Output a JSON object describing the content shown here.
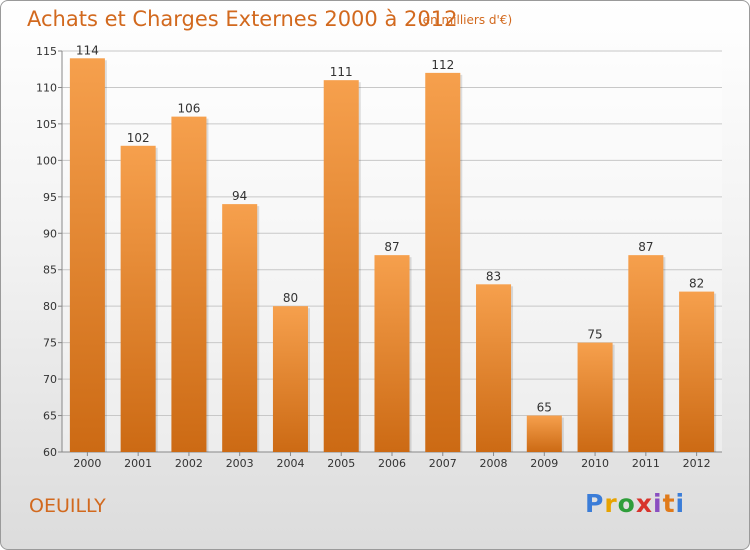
{
  "title": "Achats et Charges Externes 2000 à 2012",
  "subtitle": "(en milliers d'€)",
  "town": "OEUILLY",
  "logo": {
    "letters": [
      "P",
      "r",
      "o",
      "x",
      "i",
      "t",
      "i"
    ],
    "colors": [
      "#3b7dd8",
      "#e8a300",
      "#2e9e3a",
      "#d8342c",
      "#8a4fc1",
      "#e07a1a",
      "#3b7dd8"
    ]
  },
  "colors": {
    "accent": "#d2691e",
    "bar_light": "#f6a04d",
    "bar_dark": "#cc6a14",
    "grid": "#c8c8c8"
  },
  "chart_data": {
    "type": "bar",
    "title": "Achats et Charges Externes 2000 à 2012",
    "subtitle": "(en milliers d'€)",
    "categories": [
      "2000",
      "2001",
      "2002",
      "2003",
      "2004",
      "2005",
      "2006",
      "2007",
      "2008",
      "2009",
      "2010",
      "2011",
      "2012"
    ],
    "values": [
      114,
      102,
      106,
      94,
      80,
      111,
      87,
      112,
      83,
      65,
      75,
      87,
      82
    ],
    "ylim": [
      60,
      115
    ],
    "yticks": [
      60,
      65,
      70,
      75,
      80,
      85,
      90,
      95,
      100,
      105,
      110,
      115
    ],
    "xlabel": "",
    "ylabel": "",
    "grid": true,
    "legend": "none"
  }
}
